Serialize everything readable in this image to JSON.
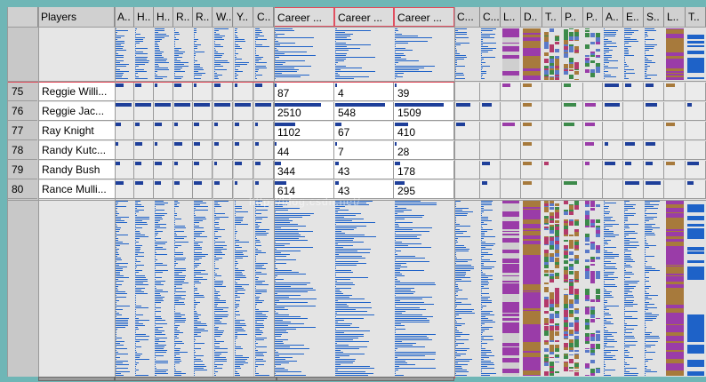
{
  "table": {
    "corner_label": "",
    "players_header": "Players",
    "narrow_headers": [
      "A..",
      "H..",
      "H..",
      "R..",
      "R..",
      "W..",
      "Y..",
      "C.."
    ],
    "career_headers": [
      "Career ...",
      "Career ...",
      "Career ..."
    ],
    "right_headers": [
      "C...",
      "C...",
      "L..",
      "D..",
      "T..",
      "P..",
      "P..",
      "A..",
      "E..",
      "S..",
      "L..",
      "T.."
    ],
    "rows": [
      {
        "num": "75",
        "name": "Reggie Willi...",
        "career": [
          "87",
          "4",
          "39"
        ]
      },
      {
        "num": "76",
        "name": "Reggie Jac...",
        "career": [
          "2510",
          "548",
          "1509"
        ]
      },
      {
        "num": "77",
        "name": "Ray Knight",
        "career": [
          "1102",
          "67",
          "410"
        ]
      },
      {
        "num": "78",
        "name": "Randy Kutc...",
        "career": [
          "44",
          "7",
          "28"
        ]
      },
      {
        "num": "79",
        "name": "Randy Bush",
        "career": [
          "344",
          "43",
          "178"
        ]
      },
      {
        "num": "80",
        "name": "Rance Mulli...",
        "career": [
          "614",
          "43",
          "295"
        ]
      }
    ],
    "career_max": [
      3000,
      600,
      1700
    ]
  },
  "watermark": "http://blog.csdn.net/",
  "colors": {
    "bar_blue": "#1e62c8",
    "row_bar": "#1e3f9a",
    "brown": "#a77a3c",
    "purple": "#9a3ca8",
    "selection_red": "#e24a5a",
    "frame_teal": "#6fb6b6"
  }
}
